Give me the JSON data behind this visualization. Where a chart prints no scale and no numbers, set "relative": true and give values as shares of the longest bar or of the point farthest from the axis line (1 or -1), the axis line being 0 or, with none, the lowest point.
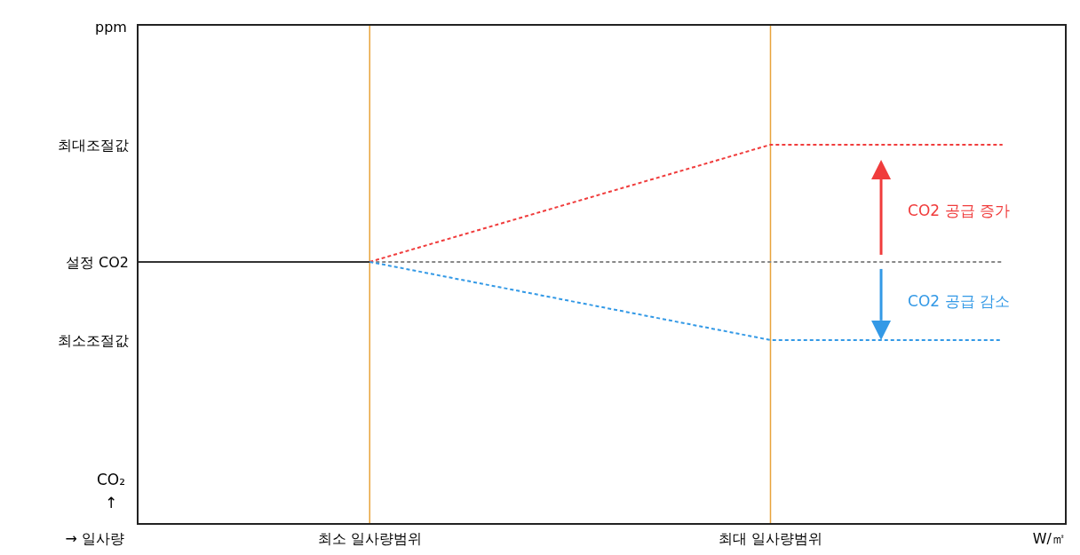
{
  "chart_data": {
    "type": "line",
    "relative": true,
    "xlabel": "W/㎡",
    "categories": [
      null,
      null,
      null,
      null,
      null,
      null,
      null,
      null,
      null,
      null,
      null,
      "최소 일사량범위",
      null,
      null,
      null,
      null,
      null,
      null,
      null,
      null,
      null,
      null,
      null,
      null,
      null,
      null,
      null,
      null,
      null,
      null,
      "최대 일사량범위",
      null,
      null,
      null,
      null,
      null,
      null,
      null,
      null,
      null,
      null,
      null,
      null,
      null,
      null
    ],
    "ref_lines": [
      {
        "axis": "x",
        "value": "최소 일사량범위",
        "label": null,
        "color": "#e8a33c"
      },
      {
        "axis": "x",
        "value": "최대 일사량범위",
        "label": null,
        "color": "#e8a33c"
      }
    ],
    "series": [
      {
        "color": "#333333",
        "line_style": "solid",
        "values": [
          0.691,
          null,
          null,
          null,
          null,
          null,
          null,
          null,
          null,
          null,
          null,
          0.691,
          null,
          null,
          null,
          null,
          null,
          null,
          null,
          null,
          null,
          null,
          null,
          null,
          null,
          null,
          null,
          null,
          null,
          null,
          null,
          null,
          null,
          null,
          null,
          null,
          null,
          null,
          null,
          null,
          null,
          null,
          null,
          null,
          null
        ]
      },
      {
        "color": "#888888",
        "line_style": "dashed",
        "values": [
          null,
          null,
          null,
          null,
          null,
          null,
          null,
          null,
          null,
          null,
          null,
          0.691,
          null,
          null,
          null,
          null,
          null,
          null,
          null,
          null,
          null,
          null,
          null,
          null,
          null,
          null,
          null,
          null,
          null,
          null,
          null,
          null,
          null,
          null,
          null,
          null,
          null,
          null,
          null,
          null,
          null,
          0.691,
          null,
          null,
          null
        ]
      },
      {
        "color": "#f03c3c",
        "line_style": "dashed",
        "values": [
          null,
          null,
          null,
          null,
          null,
          null,
          null,
          null,
          null,
          null,
          null,
          0.691,
          null,
          null,
          null,
          null,
          null,
          null,
          null,
          null,
          null,
          null,
          null,
          null,
          null,
          null,
          null,
          null,
          null,
          null,
          1,
          null,
          null,
          null,
          null,
          null,
          null,
          null,
          null,
          null,
          null,
          1,
          null,
          null,
          null
        ]
      },
      {
        "color": "#3399e6",
        "line_style": "dashed",
        "values": [
          null,
          null,
          null,
          null,
          null,
          null,
          null,
          null,
          null,
          null,
          null,
          0.691,
          null,
          null,
          null,
          null,
          null,
          null,
          null,
          null,
          null,
          null,
          null,
          null,
          null,
          null,
          null,
          null,
          null,
          null,
          0.485,
          null,
          null,
          null,
          null,
          null,
          null,
          null,
          null,
          null,
          null,
          0.485,
          null,
          null,
          null
        ]
      }
    ],
    "annotations": [
      "최대조절값",
      "설정 CO2",
      "최소조절값",
      "CO2 공급 증가",
      "CO2 공급 감소",
      "CO₂ ↑",
      "→ 일사량",
      "ppm"
    ]
  }
}
